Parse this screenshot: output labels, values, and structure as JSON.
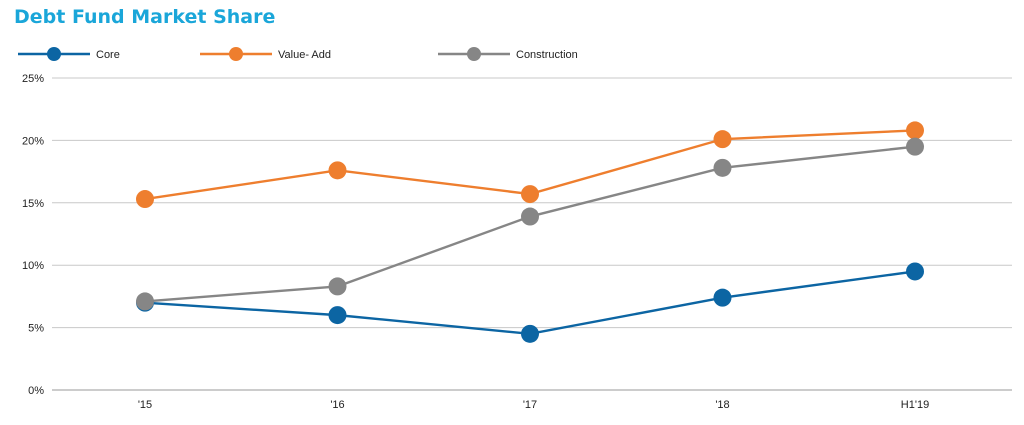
{
  "chart_data": {
    "type": "line",
    "title": "Debt Fund Market Share",
    "categories": [
      "'15",
      "'16",
      "'17",
      "'18",
      "H1'19"
    ],
    "series": [
      {
        "name": "Core",
        "color": "#0c65a3",
        "values": [
          7.0,
          6.0,
          4.5,
          7.4,
          9.5
        ]
      },
      {
        "name": "Value- Add",
        "color": "#ee7e2e",
        "values": [
          15.3,
          17.6,
          15.7,
          20.1,
          20.8
        ]
      },
      {
        "name": "Construction",
        "color": "#868686",
        "values": [
          7.1,
          8.3,
          13.9,
          17.8,
          19.5
        ]
      }
    ],
    "y_ticks": [
      "0%",
      "5%",
      "10%",
      "15%",
      "20%",
      "25%"
    ],
    "ylim": [
      0,
      25
    ],
    "xlabel": "",
    "ylabel": "",
    "grid": true,
    "legend_position": "top-left"
  }
}
